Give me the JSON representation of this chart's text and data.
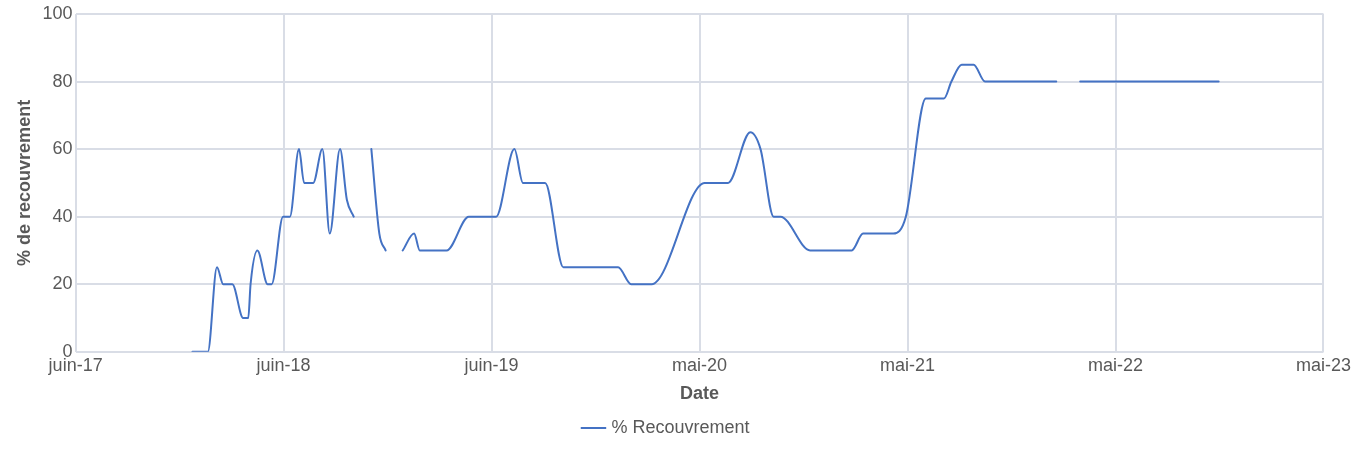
{
  "chart_data": {
    "type": "line",
    "xlabel": "Date",
    "ylabel": "% de recouvrement",
    "legend": "bottom",
    "grid": true,
    "marker": "none",
    "line_style": "solid",
    "xlim": [
      "2017-06-01",
      "2023-05-31"
    ],
    "xticks": [
      {
        "value": "2017-06-01",
        "label": "juin-17"
      },
      {
        "value": "2018-06-01",
        "label": "juin-18"
      },
      {
        "value": "2019-06-01",
        "label": "juin-19"
      },
      {
        "value": "2020-05-31",
        "label": "mai-20"
      },
      {
        "value": "2021-05-31",
        "label": "mai-21"
      },
      {
        "value": "2022-05-31",
        "label": "mai-22"
      },
      {
        "value": "2023-05-31",
        "label": "mai-23"
      }
    ],
    "ylim": [
      0,
      100
    ],
    "yticks": [
      0,
      20,
      40,
      60,
      80,
      100
    ],
    "series": [
      {
        "name": "% Recouvrement",
        "color": "#4472c4",
        "x": [
          "2017-12-23",
          "2018-01-19",
          "2018-02-04",
          "2018-02-15",
          "2018-03-03",
          "2018-03-22",
          "2018-03-31",
          "2018-04-04",
          "2018-04-16",
          "2018-05-04",
          "2018-05-11",
          "2018-05-31",
          "2018-06-12",
          "2018-06-28",
          "2018-07-07",
          "2018-07-23",
          "2018-08-08",
          "2018-08-21",
          "2018-09-08",
          "2018-09-20",
          "2018-10-02",
          "2018-10-17",
          "2018-11-02",
          "2018-11-16",
          "2018-11-27",
          "2018-12-12",
          "2018-12-27",
          "2019-01-16",
          "2019-01-26",
          "2019-03-14",
          "2019-04-22",
          "2019-06-09",
          "2019-07-11",
          "2019-07-26",
          "2019-09-03",
          "2019-10-05",
          "2020-01-09",
          "2020-02-01",
          "2020-03-08",
          "2020-06-09",
          "2020-07-20",
          "2020-08-28",
          "2020-09-15",
          "2020-10-08",
          "2020-10-20",
          "2020-12-11",
          "2021-02-22",
          "2021-03-14",
          "2021-05-06",
          "2021-05-28",
          "2021-07-02",
          "2021-08-03",
          "2021-08-16",
          "2021-09-03",
          "2021-09-24",
          "2021-10-14",
          "2022-02-16",
          "2022-03-09",
          "2022-03-30",
          "2022-11-28"
        ],
        "values": [
          0,
          0,
          25,
          20,
          20,
          10,
          10,
          20,
          30,
          20,
          20,
          40,
          40,
          60,
          50,
          50,
          60,
          35,
          60,
          45,
          40,
          null,
          60,
          35,
          30,
          null,
          30,
          35,
          30,
          30,
          40,
          40,
          60,
          50,
          50,
          25,
          25,
          20,
          20,
          50,
          50,
          65,
          60,
          40,
          40,
          30,
          30,
          35,
          35,
          40,
          75,
          75,
          80,
          85,
          85,
          80,
          80,
          null,
          80,
          80
        ]
      }
    ]
  }
}
